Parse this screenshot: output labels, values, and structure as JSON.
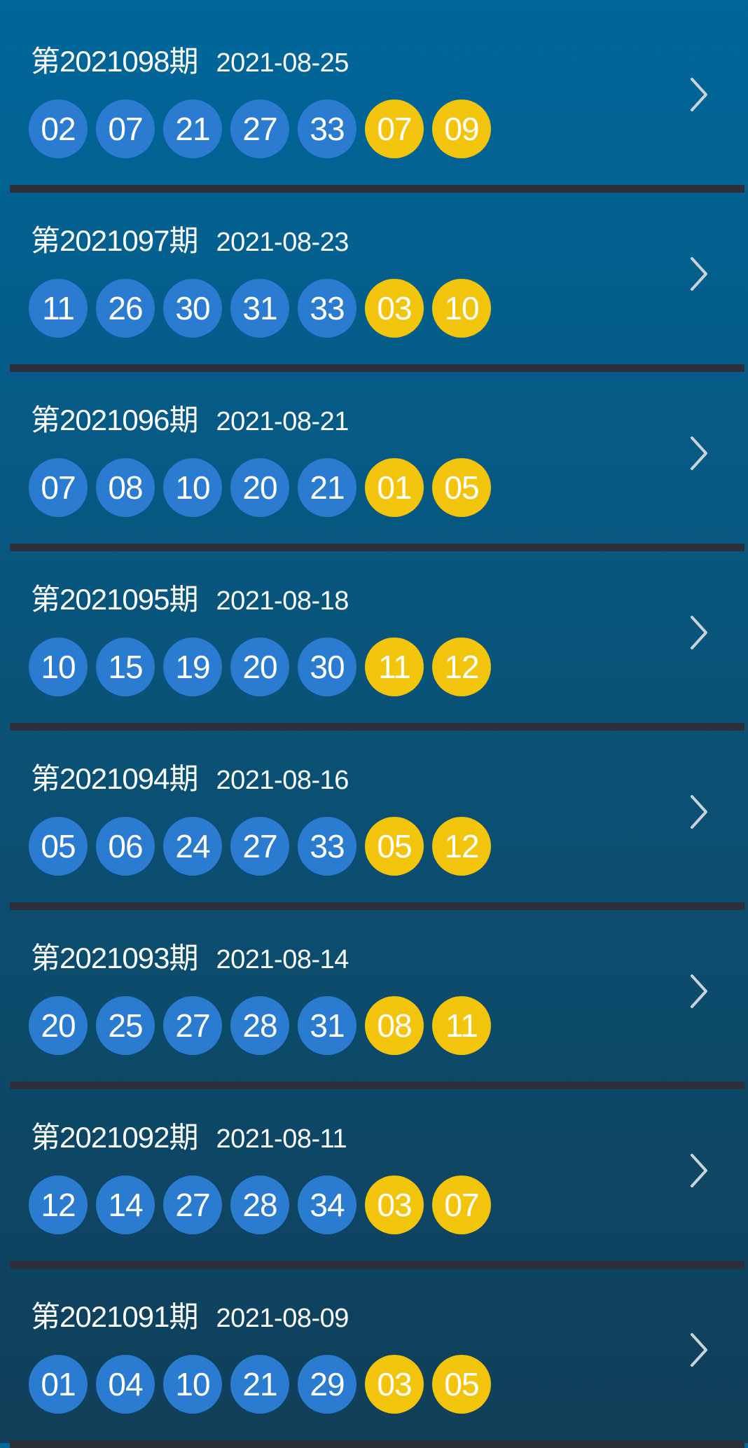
{
  "colors": {
    "front_ball": "#2b7bd0",
    "back_ball": "#f2c50c",
    "separator": "#2d2f3a",
    "bg_top": "#00679b",
    "bg_bottom": "#103f59"
  },
  "draws": [
    {
      "period": "第2021098期",
      "date": "2021-08-25",
      "front": [
        "02",
        "07",
        "21",
        "27",
        "33"
      ],
      "back": [
        "07",
        "09"
      ]
    },
    {
      "period": "第2021097期",
      "date": "2021-08-23",
      "front": [
        "11",
        "26",
        "30",
        "31",
        "33"
      ],
      "back": [
        "03",
        "10"
      ]
    },
    {
      "period": "第2021096期",
      "date": "2021-08-21",
      "front": [
        "07",
        "08",
        "10",
        "20",
        "21"
      ],
      "back": [
        "01",
        "05"
      ]
    },
    {
      "period": "第2021095期",
      "date": "2021-08-18",
      "front": [
        "10",
        "15",
        "19",
        "20",
        "30"
      ],
      "back": [
        "11",
        "12"
      ]
    },
    {
      "period": "第2021094期",
      "date": "2021-08-16",
      "front": [
        "05",
        "06",
        "24",
        "27",
        "33"
      ],
      "back": [
        "05",
        "12"
      ]
    },
    {
      "period": "第2021093期",
      "date": "2021-08-14",
      "front": [
        "20",
        "25",
        "27",
        "28",
        "31"
      ],
      "back": [
        "08",
        "11"
      ]
    },
    {
      "period": "第2021092期",
      "date": "2021-08-11",
      "front": [
        "12",
        "14",
        "27",
        "28",
        "34"
      ],
      "back": [
        "03",
        "07"
      ]
    },
    {
      "period": "第2021091期",
      "date": "2021-08-09",
      "front": [
        "01",
        "04",
        "10",
        "21",
        "29"
      ],
      "back": [
        "03",
        "05"
      ]
    }
  ],
  "row_icon": "chevron-right-icon"
}
